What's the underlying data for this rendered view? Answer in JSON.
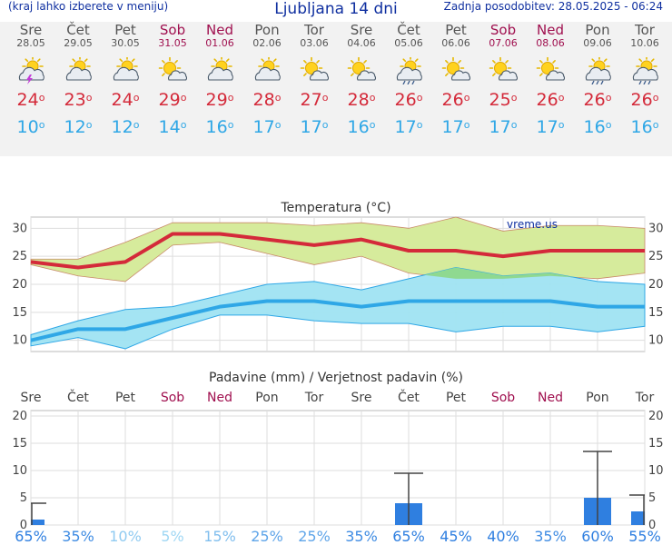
{
  "header": {
    "menu_hint": "(kraj lahko izberete v meniju)",
    "title": "Ljubljana 14 dni",
    "updated": "Zadnja posodobitev: 28.05.2025 - 06:24"
  },
  "days": [
    {
      "name": "Sre",
      "date": "28.05",
      "weekend": false,
      "icon": "sun-cloud-thunder-icon",
      "tmax": "24",
      "tmin": "10"
    },
    {
      "name": "Čet",
      "date": "29.05",
      "weekend": false,
      "icon": "sun-cloud-icon",
      "tmax": "23",
      "tmin": "12"
    },
    {
      "name": "Pet",
      "date": "30.05",
      "weekend": false,
      "icon": "sun-cloud-icon",
      "tmax": "24",
      "tmin": "12"
    },
    {
      "name": "Sob",
      "date": "31.05",
      "weekend": true,
      "icon": "sun-small-cloud-icon",
      "tmax": "29",
      "tmin": "14"
    },
    {
      "name": "Ned",
      "date": "01.06",
      "weekend": true,
      "icon": "sun-cloud-icon",
      "tmax": "29",
      "tmin": "16"
    },
    {
      "name": "Pon",
      "date": "02.06",
      "weekend": false,
      "icon": "sun-cloud-icon",
      "tmax": "28",
      "tmin": "17"
    },
    {
      "name": "Tor",
      "date": "03.06",
      "weekend": false,
      "icon": "sun-small-cloud-icon",
      "tmax": "27",
      "tmin": "17"
    },
    {
      "name": "Sre",
      "date": "04.06",
      "weekend": false,
      "icon": "sun-small-cloud-icon",
      "tmax": "28",
      "tmin": "16"
    },
    {
      "name": "Čet",
      "date": "05.06",
      "weekend": false,
      "icon": "sun-cloud-rain-icon",
      "tmax": "26",
      "tmin": "17"
    },
    {
      "name": "Pet",
      "date": "06.06",
      "weekend": false,
      "icon": "sun-small-cloud-icon",
      "tmax": "26",
      "tmin": "17"
    },
    {
      "name": "Sob",
      "date": "07.06",
      "weekend": true,
      "icon": "sun-small-cloud-icon",
      "tmax": "25",
      "tmin": "17"
    },
    {
      "name": "Ned",
      "date": "08.06",
      "weekend": true,
      "icon": "sun-small-cloud-icon",
      "tmax": "26",
      "tmin": "17"
    },
    {
      "name": "Pon",
      "date": "09.06",
      "weekend": false,
      "icon": "sun-cloud-rain-icon",
      "tmax": "26",
      "tmin": "16"
    },
    {
      "name": "Tor",
      "date": "10.06",
      "weekend": false,
      "icon": "sun-cloud-rain-icon",
      "tmax": "26",
      "tmin": "16"
    }
  ],
  "colors": {
    "max": "#d42a3a",
    "min": "#2fa7e6",
    "weekend": "#a0104f",
    "band_max": "#d6eb9c",
    "band_min": "#9fe3f2",
    "band_overlap": "#8fd990",
    "bar": "#2f7fe0"
  },
  "chart_data": [
    {
      "type": "area",
      "title": "Temperatura (°C)",
      "watermark": "vreme.us",
      "ylim": [
        8,
        32
      ],
      "yticks": [
        10,
        15,
        20,
        25,
        30
      ],
      "x": [
        "28.05",
        "29.05",
        "30.05",
        "31.05",
        "01.06",
        "02.06",
        "03.06",
        "04.06",
        "05.06",
        "06.06",
        "07.06",
        "08.06",
        "09.06",
        "10.06"
      ],
      "series": [
        {
          "values": [
            24,
            23,
            24,
            29,
            29,
            28,
            27,
            28,
            26,
            26,
            25,
            26,
            26,
            26
          ]
        },
        {
          "values": [
            23.5,
            21.5,
            20.5,
            27,
            27.5,
            25.5,
            23.5,
            25,
            22,
            21,
            21,
            21.5,
            21,
            22
          ]
        },
        {
          "values": [
            24.5,
            24.5,
            27.5,
            31,
            31,
            31,
            30.5,
            31,
            30,
            32,
            29.5,
            30.5,
            30.5,
            30
          ]
        },
        {
          "values": [
            10,
            12,
            12,
            14,
            16,
            17,
            17,
            16,
            17,
            17,
            17,
            17,
            16,
            16
          ]
        },
        {
          "values": [
            9,
            10.5,
            8.5,
            12,
            14.5,
            14.5,
            13.5,
            13,
            13,
            11.5,
            12.5,
            12.5,
            11.5,
            12.5
          ]
        },
        {
          "values": [
            11,
            13.5,
            15.5,
            16,
            18,
            20,
            20.5,
            19,
            21,
            23,
            21.5,
            22,
            20.5,
            20
          ]
        }
      ]
    },
    {
      "type": "bar",
      "title": "Padavine (mm) / Verjetnost padavin (%)",
      "ylim": [
        0,
        21
      ],
      "yticks": [
        0,
        5,
        10,
        15,
        20
      ],
      "categories": [
        "Sre",
        "Čet",
        "Pet",
        "Sob",
        "Ned",
        "Pon",
        "Tor",
        "Sre",
        "Čet",
        "Pet",
        "Sob",
        "Ned",
        "Pon",
        "Tor"
      ],
      "values": [
        1,
        0,
        0,
        0,
        0,
        0,
        0,
        0,
        4,
        0,
        0,
        0,
        5,
        2.5
      ],
      "error_high": [
        4,
        0,
        0,
        0,
        0,
        0,
        0,
        0,
        9.5,
        0,
        0,
        0,
        13.5,
        5.5
      ],
      "probability": [
        "65%",
        "35%",
        "10%",
        "5%",
        "15%",
        "25%",
        "25%",
        "35%",
        "65%",
        "45%",
        "40%",
        "35%",
        "60%",
        "55%"
      ]
    }
  ]
}
